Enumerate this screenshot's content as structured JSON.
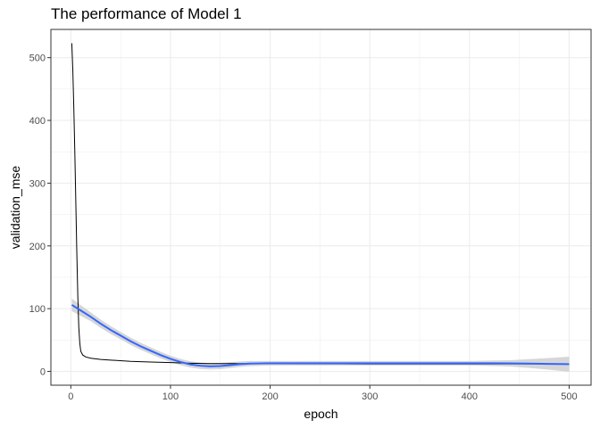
{
  "chart_data": {
    "type": "line",
    "title": "The performance of Model 1",
    "xlabel": "epoch",
    "ylabel": "validation_mse",
    "xlim": [
      -20,
      522
    ],
    "ylim": [
      -22,
      545
    ],
    "x_ticks": [
      0,
      100,
      200,
      300,
      400,
      500
    ],
    "y_ticks": [
      0,
      100,
      200,
      300,
      400,
      500
    ],
    "grid": true,
    "legend": "none",
    "series": [
      {
        "kind": "raw",
        "color": "#000000",
        "points": [
          [
            1,
            523
          ],
          [
            2,
            480
          ],
          [
            3,
            420
          ],
          [
            4,
            350
          ],
          [
            5,
            270
          ],
          [
            6,
            190
          ],
          [
            7,
            120
          ],
          [
            8,
            70
          ],
          [
            9,
            45
          ],
          [
            10,
            32
          ],
          [
            12,
            26
          ],
          [
            15,
            23
          ],
          [
            20,
            21
          ],
          [
            30,
            19
          ],
          [
            40,
            18
          ],
          [
            60,
            16
          ],
          [
            80,
            15
          ],
          [
            100,
            14
          ],
          [
            120,
            13
          ],
          [
            140,
            12.5
          ],
          [
            160,
            12.5
          ],
          [
            200,
            12.5
          ],
          [
            300,
            12
          ],
          [
            400,
            12
          ],
          [
            450,
            12
          ],
          [
            500,
            12
          ]
        ]
      },
      {
        "kind": "smooth",
        "color": "#3366ff",
        "band_color": "#cccccc",
        "points": [
          [
            1,
            106
          ],
          [
            10,
            97
          ],
          [
            20,
            87
          ],
          [
            30,
            76
          ],
          [
            40,
            66
          ],
          [
            50,
            57
          ],
          [
            60,
            48
          ],
          [
            70,
            40
          ],
          [
            80,
            33
          ],
          [
            90,
            26
          ],
          [
            100,
            20
          ],
          [
            110,
            15
          ],
          [
            120,
            11
          ],
          [
            130,
            9
          ],
          [
            140,
            8
          ],
          [
            150,
            8.5
          ],
          [
            160,
            10
          ],
          [
            170,
            11.5
          ],
          [
            180,
            12.5
          ],
          [
            200,
            13
          ],
          [
            250,
            13
          ],
          [
            300,
            13
          ],
          [
            350,
            13
          ],
          [
            400,
            13
          ],
          [
            420,
            13
          ],
          [
            440,
            12.8
          ],
          [
            460,
            12.5
          ],
          [
            480,
            12
          ],
          [
            500,
            11.5
          ]
        ],
        "band_halfwidth": [
          [
            1,
            10
          ],
          [
            20,
            7
          ],
          [
            50,
            6
          ],
          [
            100,
            5
          ],
          [
            150,
            5
          ],
          [
            200,
            3.5
          ],
          [
            300,
            3.5
          ],
          [
            400,
            3.5
          ],
          [
            440,
            5
          ],
          [
            470,
            8
          ],
          [
            500,
            12
          ]
        ]
      }
    ]
  }
}
